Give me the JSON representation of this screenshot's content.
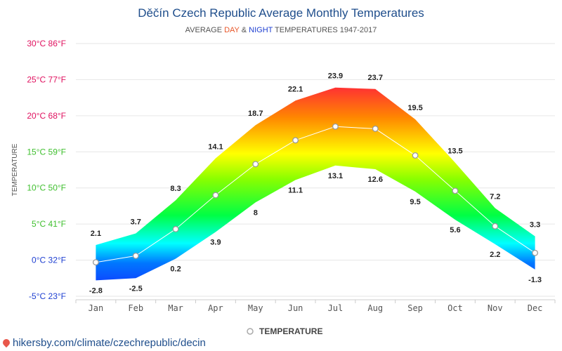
{
  "chart_data": {
    "type": "area",
    "title": "Děčín Czech Republic Average Monthly Temperatures",
    "subtitle": {
      "prefix": "AVERAGE ",
      "day": "DAY",
      "amp": " & ",
      "night": "NIGHT",
      "suffix": " TEMPERATURES 1947-2017"
    },
    "ylabel": "TEMPERATURE",
    "ylim": [
      -5,
      30
    ],
    "yticks": [
      {
        "value": 30,
        "label": "30°C 86°F"
      },
      {
        "value": 25,
        "label": "25°C 77°F"
      },
      {
        "value": 20,
        "label": "20°C 68°F"
      },
      {
        "value": 15,
        "label": "15°C 59°F"
      },
      {
        "value": 10,
        "label": "10°C 50°F"
      },
      {
        "value": 5,
        "label": "5°C 41°F"
      },
      {
        "value": 0,
        "label": "0°C 32°F"
      },
      {
        "value": -5,
        "label": "-5°C 23°F"
      }
    ],
    "categories": [
      "Jan",
      "Feb",
      "Mar",
      "Apr",
      "May",
      "Jun",
      "Jul",
      "Aug",
      "Sep",
      "Oct",
      "Nov",
      "Dec"
    ],
    "day": [
      2.1,
      3.7,
      8.3,
      14.1,
      18.7,
      22.1,
      23.9,
      23.7,
      19.5,
      13.5,
      7.2,
      3.3
    ],
    "night": [
      -2.8,
      -2.5,
      0.2,
      3.9,
      8,
      11.1,
      13.1,
      12.6,
      9.5,
      5.6,
      2.2,
      -1.3
    ],
    "series": [
      {
        "name": "TEMPERATURE",
        "values": [
          -0.3,
          0.6,
          4.3,
          9.0,
          13.3,
          16.6,
          18.5,
          18.2,
          14.5,
          9.6,
          4.7,
          1.0
        ]
      }
    ],
    "legend": "bottom-center",
    "grid": true
  },
  "footer": {
    "source": "hikersby.com/climate/czechrepublic/decin"
  },
  "colors": {
    "title": "#1f4e8c",
    "day": "#e8572a",
    "night": "#1e3fd1",
    "grid": "#e6e6e6"
  }
}
